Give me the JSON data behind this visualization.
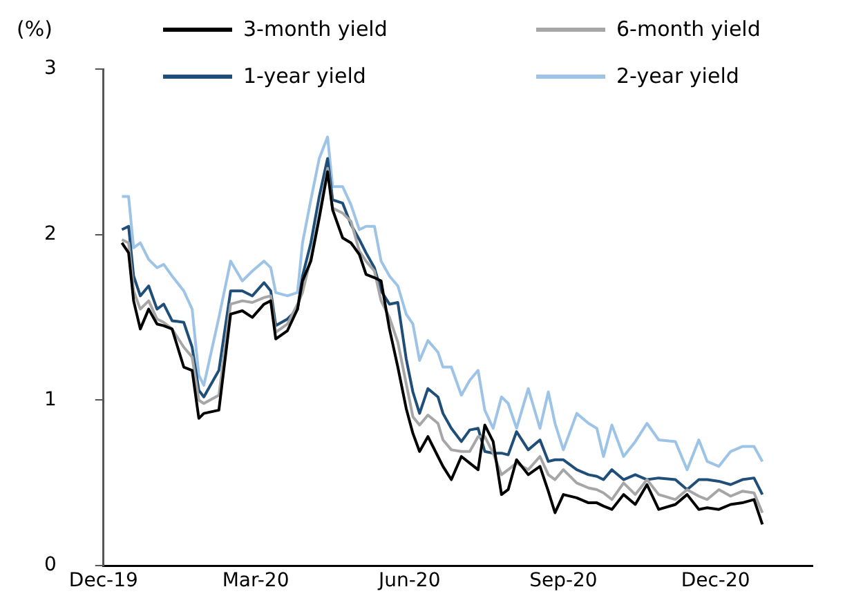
{
  "chart_data": {
    "type": "line",
    "ylabel": "(%)",
    "legend": "top",
    "grid": false,
    "marker": "none",
    "line_style": "solid",
    "x": [
      "2019-12-12",
      "2019-12-16",
      "2019-12-19",
      "2019-12-23",
      "2019-12-28",
      "2020-01-02",
      "2020-01-06",
      "2020-01-11",
      "2020-01-18",
      "2020-01-23",
      "2020-01-27",
      "2020-01-30",
      "2020-02-08",
      "2020-02-15",
      "2020-02-22",
      "2020-02-28",
      "2020-03-06",
      "2020-03-10",
      "2020-03-13",
      "2020-03-20",
      "2020-03-26",
      "2020-03-29",
      "2020-04-03",
      "2020-04-08",
      "2020-04-13",
      "2020-04-16",
      "2020-04-22",
      "2020-04-27",
      "2020-05-02",
      "2020-05-06",
      "2020-05-11",
      "2020-05-15",
      "2020-05-20",
      "2020-05-25",
      "2020-05-30",
      "2020-06-03",
      "2020-06-07",
      "2020-06-12",
      "2020-06-18",
      "2020-06-21",
      "2020-06-26",
      "2020-07-02",
      "2020-07-07",
      "2020-07-12",
      "2020-07-16",
      "2020-07-21",
      "2020-07-26",
      "2020-07-30",
      "2020-08-04",
      "2020-08-11",
      "2020-08-18",
      "2020-08-23",
      "2020-08-27",
      "2020-09-01",
      "2020-09-09",
      "2020-09-16",
      "2020-09-21",
      "2020-09-25",
      "2020-09-30",
      "2020-10-07",
      "2020-10-14",
      "2020-10-21",
      "2020-10-28",
      "2020-11-07",
      "2020-11-14",
      "2020-11-21",
      "2020-11-26",
      "2020-12-03",
      "2020-12-10",
      "2020-12-17",
      "2020-12-24",
      "2020-12-29"
    ],
    "xlim": [
      "2019-12-01",
      "2021-01-28"
    ],
    "xticks": [
      {
        "value": "2019-12-01",
        "label": "Dec-19"
      },
      {
        "value": "2020-03-01",
        "label": "Mar-20"
      },
      {
        "value": "2020-06-01",
        "label": "Jun-20"
      },
      {
        "value": "2020-09-01",
        "label": "Sep-20"
      },
      {
        "value": "2020-12-01",
        "label": "Dec-20"
      }
    ],
    "ylim": [
      0,
      3
    ],
    "yticks": [
      0,
      1,
      2,
      3
    ],
    "series": [
      {
        "name": "3-month yield",
        "color": "#000000",
        "values": [
          1.95,
          1.89,
          1.6,
          1.43,
          1.55,
          1.46,
          1.45,
          1.43,
          1.2,
          1.18,
          0.89,
          0.92,
          0.94,
          1.52,
          1.54,
          1.5,
          1.58,
          1.6,
          1.37,
          1.42,
          1.55,
          1.72,
          1.84,
          2.1,
          2.38,
          2.15,
          1.98,
          1.95,
          1.88,
          1.76,
          1.74,
          1.72,
          1.43,
          1.2,
          0.95,
          0.8,
          0.69,
          0.78,
          0.66,
          0.6,
          0.52,
          0.66,
          0.62,
          0.58,
          0.85,
          0.75,
          0.43,
          0.46,
          0.64,
          0.55,
          0.6,
          0.45,
          0.32,
          0.43,
          0.41,
          0.38,
          0.38,
          0.36,
          0.34,
          0.43,
          0.37,
          0.49,
          0.34,
          0.37,
          0.43,
          0.34,
          0.35,
          0.34,
          0.37,
          0.38,
          0.4,
          0.25
        ]
      },
      {
        "name": "6-month yield",
        "color": "#a6a6a6",
        "values": [
          1.97,
          1.95,
          1.66,
          1.55,
          1.6,
          1.49,
          1.47,
          1.43,
          1.32,
          1.26,
          1.0,
          0.98,
          1.03,
          1.58,
          1.6,
          1.59,
          1.62,
          1.63,
          1.41,
          1.46,
          1.58,
          1.65,
          1.86,
          2.12,
          2.4,
          2.16,
          2.13,
          2.08,
          1.9,
          1.84,
          1.78,
          1.6,
          1.5,
          1.35,
          1.1,
          0.9,
          0.85,
          0.91,
          0.86,
          0.76,
          0.7,
          0.69,
          0.69,
          0.78,
          0.78,
          0.68,
          0.55,
          0.58,
          0.62,
          0.58,
          0.66,
          0.55,
          0.52,
          0.58,
          0.5,
          0.47,
          0.46,
          0.44,
          0.4,
          0.5,
          0.43,
          0.52,
          0.43,
          0.4,
          0.46,
          0.42,
          0.4,
          0.46,
          0.42,
          0.45,
          0.44,
          0.32
        ]
      },
      {
        "name": "1-year yield",
        "color": "#1f4e79",
        "values": [
          2.03,
          2.05,
          1.75,
          1.63,
          1.69,
          1.55,
          1.58,
          1.48,
          1.47,
          1.32,
          1.06,
          1.02,
          1.18,
          1.66,
          1.66,
          1.63,
          1.71,
          1.66,
          1.45,
          1.49,
          1.55,
          1.75,
          1.95,
          2.23,
          2.46,
          2.21,
          2.19,
          2.06,
          1.97,
          1.89,
          1.8,
          1.66,
          1.58,
          1.59,
          1.25,
          1.05,
          0.92,
          1.07,
          1.02,
          0.92,
          0.83,
          0.75,
          0.82,
          0.83,
          0.69,
          0.68,
          0.68,
          0.67,
          0.81,
          0.7,
          0.76,
          0.63,
          0.64,
          0.64,
          0.58,
          0.55,
          0.54,
          0.52,
          0.58,
          0.52,
          0.55,
          0.52,
          0.53,
          0.52,
          0.46,
          0.52,
          0.52,
          0.51,
          0.49,
          0.52,
          0.53,
          0.43
        ]
      },
      {
        "name": "2-year yield",
        "color": "#9dc3e6",
        "values": [
          2.23,
          2.23,
          1.92,
          1.95,
          1.85,
          1.8,
          1.82,
          1.75,
          1.66,
          1.55,
          1.15,
          1.09,
          1.5,
          1.84,
          1.72,
          1.78,
          1.84,
          1.8,
          1.65,
          1.63,
          1.65,
          1.95,
          2.21,
          2.46,
          2.59,
          2.29,
          2.29,
          2.18,
          2.03,
          2.05,
          2.05,
          1.84,
          1.75,
          1.69,
          1.52,
          1.46,
          1.24,
          1.36,
          1.29,
          1.2,
          1.2,
          1.03,
          1.12,
          1.18,
          0.94,
          0.83,
          1.02,
          0.98,
          0.83,
          1.07,
          0.83,
          1.05,
          0.86,
          0.7,
          0.92,
          0.86,
          0.83,
          0.66,
          0.85,
          0.66,
          0.75,
          0.86,
          0.76,
          0.75,
          0.58,
          0.76,
          0.63,
          0.6,
          0.69,
          0.72,
          0.72,
          0.63
        ]
      }
    ]
  }
}
